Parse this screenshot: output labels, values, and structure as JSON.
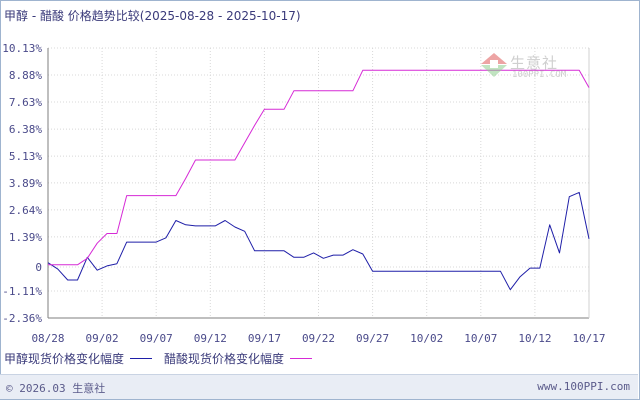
{
  "chart_data": {
    "type": "line",
    "title": "甲醇 - 醋酸 价格趋势比较(2025-08-28 - 2025-10-17)",
    "xlabel": "",
    "ylabel": "",
    "ylim": [
      -2.36,
      10.13
    ],
    "y_ticks": [
      "10.13%",
      "8.88%",
      "7.63%",
      "6.38%",
      "5.13%",
      "3.89%",
      "2.64%",
      "1.39%",
      "0",
      "-1.11%",
      "-2.36%"
    ],
    "y_tick_values": [
      10.13,
      8.88,
      7.63,
      6.38,
      5.13,
      3.89,
      2.64,
      1.39,
      0,
      -1.11,
      -2.36
    ],
    "x_ticks": [
      "08/28",
      "09/02",
      "09/07",
      "09/12",
      "09/17",
      "09/22",
      "09/27",
      "10/02",
      "10/07",
      "10/12",
      "10/17"
    ],
    "grid": true,
    "legend": "bottom-left",
    "series": [
      {
        "name": "甲醇现货价格变化幅度",
        "color": "#1f1fa8",
        "points": [
          [
            0,
            0.2
          ],
          [
            1,
            -0.1
          ],
          [
            2,
            -0.6
          ],
          [
            3,
            -0.6
          ],
          [
            4,
            0.45
          ],
          [
            5,
            -0.15
          ],
          [
            6,
            0.05
          ],
          [
            7,
            0.15
          ],
          [
            8,
            1.15
          ],
          [
            9,
            1.15
          ],
          [
            10,
            1.15
          ],
          [
            11,
            1.15
          ],
          [
            12,
            1.35
          ],
          [
            13,
            2.15
          ],
          [
            14,
            1.95
          ],
          [
            15,
            1.9
          ],
          [
            16,
            1.9
          ],
          [
            17,
            1.9
          ],
          [
            18,
            2.15
          ],
          [
            19,
            1.85
          ],
          [
            20,
            1.65
          ],
          [
            21,
            0.75
          ],
          [
            22,
            0.75
          ],
          [
            23,
            0.75
          ],
          [
            24,
            0.75
          ],
          [
            25,
            0.45
          ],
          [
            26,
            0.45
          ],
          [
            27,
            0.65
          ],
          [
            28,
            0.4
          ],
          [
            29,
            0.55
          ],
          [
            30,
            0.55
          ],
          [
            31,
            0.8
          ],
          [
            32,
            0.6
          ],
          [
            33,
            -0.2
          ],
          [
            34,
            -0.2
          ],
          [
            35,
            -0.2
          ],
          [
            36,
            -0.2
          ],
          [
            37,
            -0.2
          ],
          [
            38,
            -0.2
          ],
          [
            39,
            -0.2
          ],
          [
            40,
            -0.2
          ],
          [
            41,
            -0.2
          ],
          [
            42,
            -0.2
          ],
          [
            43,
            -0.2
          ],
          [
            44,
            -0.2
          ],
          [
            45,
            -0.2
          ],
          [
            46,
            -0.2
          ],
          [
            47,
            -1.05
          ],
          [
            48,
            -0.45
          ],
          [
            49,
            -0.05
          ],
          [
            50,
            -0.05
          ],
          [
            51,
            1.95
          ],
          [
            52,
            0.65
          ],
          [
            53,
            3.25
          ],
          [
            54,
            3.45
          ],
          [
            55,
            1.3
          ]
        ]
      },
      {
        "name": "醋酸现货价格变化幅度",
        "color": "#d62ad6",
        "points": [
          [
            0,
            0.1
          ],
          [
            1,
            0.1
          ],
          [
            2,
            0.1
          ],
          [
            3,
            0.1
          ],
          [
            4,
            0.4
          ],
          [
            5,
            1.1
          ],
          [
            6,
            1.55
          ],
          [
            7,
            1.55
          ],
          [
            8,
            3.3
          ],
          [
            9,
            3.3
          ],
          [
            10,
            3.3
          ],
          [
            11,
            3.3
          ],
          [
            12,
            3.3
          ],
          [
            13,
            3.3
          ],
          [
            14,
            4.1
          ],
          [
            15,
            4.95
          ],
          [
            16,
            4.95
          ],
          [
            17,
            4.95
          ],
          [
            18,
            4.95
          ],
          [
            19,
            4.95
          ],
          [
            20,
            5.75
          ],
          [
            21,
            6.55
          ],
          [
            22,
            7.3
          ],
          [
            23,
            7.3
          ],
          [
            24,
            7.3
          ],
          [
            25,
            8.15
          ],
          [
            26,
            8.15
          ],
          [
            27,
            8.15
          ],
          [
            28,
            8.15
          ],
          [
            29,
            8.15
          ],
          [
            30,
            8.15
          ],
          [
            31,
            8.15
          ],
          [
            32,
            9.1
          ],
          [
            33,
            9.1
          ],
          [
            34,
            9.1
          ],
          [
            35,
            9.1
          ],
          [
            36,
            9.1
          ],
          [
            37,
            9.1
          ],
          [
            38,
            9.1
          ],
          [
            39,
            9.1
          ],
          [
            40,
            9.1
          ],
          [
            41,
            9.1
          ],
          [
            42,
            9.1
          ],
          [
            43,
            9.1
          ],
          [
            44,
            9.1
          ],
          [
            45,
            9.1
          ],
          [
            46,
            9.1
          ],
          [
            47,
            9.1
          ],
          [
            48,
            9.1
          ],
          [
            49,
            9.1
          ],
          [
            50,
            9.1
          ],
          [
            51,
            9.1
          ],
          [
            52,
            9.1
          ],
          [
            53,
            9.1
          ],
          [
            54,
            9.1
          ],
          [
            55,
            8.3
          ]
        ]
      }
    ]
  },
  "watermark": {
    "text": "生意社",
    "url": "100PPI.COM"
  },
  "footer": {
    "copyright": "© 2026.03 生意社",
    "site": "www.100PPI.com"
  }
}
